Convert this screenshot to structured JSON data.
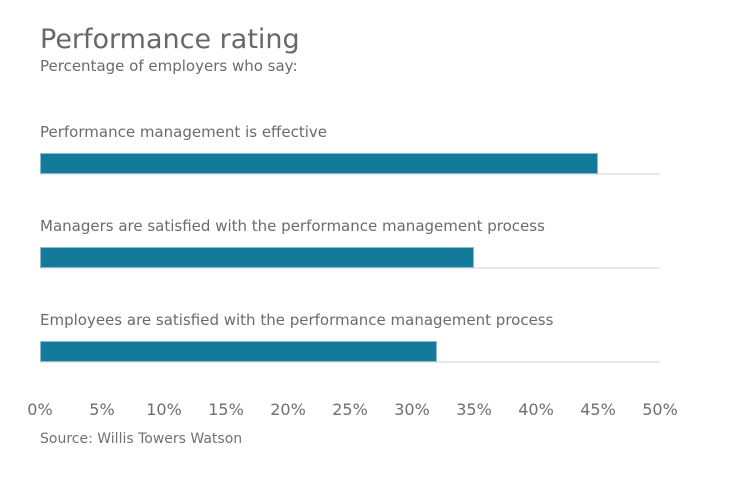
{
  "chart_data": {
    "type": "bar",
    "orientation": "horizontal",
    "title": "Performance rating",
    "subtitle": "Percentage of employers who say:",
    "categories": [
      "Performance management is effective",
      "Managers are satisfied with the performance management process",
      "Employees are satisfied with the performance management process"
    ],
    "values": [
      45,
      35,
      32
    ],
    "value_unit": "percent of employers",
    "xlim": [
      0,
      50
    ],
    "x_ticks": [
      "0%",
      "5%",
      "10%",
      "15%",
      "20%",
      "25%",
      "30%",
      "35%",
      "40%",
      "45%",
      "50%"
    ],
    "grid": "off",
    "legend": "none",
    "data_labels": "none",
    "source": "Source: Willis Towers Watson",
    "colors": {
      "page_bg": "#ffffff",
      "bar": "#147a9b",
      "bar_border": "#8abccd",
      "track_line": "#e9e9e9",
      "title_text": "#686868",
      "body_text": "#6b6b6b",
      "tick_text": "#6f6f6f",
      "source_text": "#717171"
    }
  }
}
